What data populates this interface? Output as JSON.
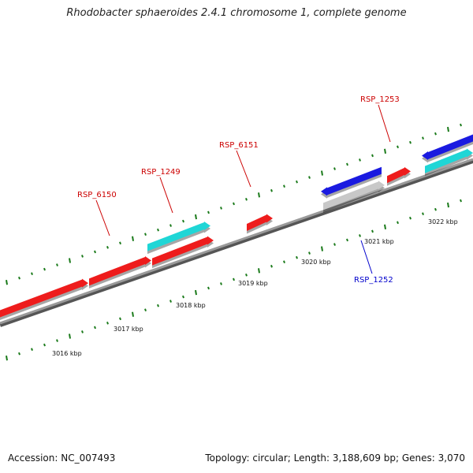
{
  "title": "Rhodobacter sphaeroides 2.4.1 chromosome 1, complete genome",
  "footer": {
    "accession": "Accession: NC_007493",
    "summary": "Topology: circular; Length: 3,188,609 bp; Genes: 3,070"
  },
  "colors": {
    "forward_gene": "#ee1c1c",
    "reverse_gene": "#1a1ae0",
    "cyan_gene": "#1fd6d6",
    "grey_gene": "#c8c8c8",
    "backbone": "#888888",
    "ticks": "#1a7a1a",
    "label_forward": "#cc0000",
    "label_reverse": "#0000cc"
  },
  "kbp_labels": [
    "3016 kbp",
    "3017 kbp",
    "3018 kbp",
    "3019 kbp",
    "3020 kbp",
    "3021 kbp",
    "3022 kbp"
  ],
  "gene_labels": [
    {
      "text": "RSP_6150",
      "strand": "forward"
    },
    {
      "text": "RSP_1249",
      "strand": "forward"
    },
    {
      "text": "RSP_6151",
      "strand": "forward"
    },
    {
      "text": "RSP_1253",
      "strand": "forward"
    },
    {
      "text": "RSP_1252",
      "strand": "reverse"
    }
  ]
}
